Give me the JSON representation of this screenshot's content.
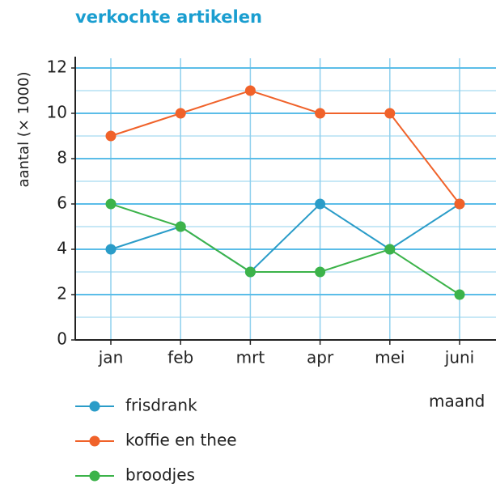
{
  "chart_data": {
    "type": "line",
    "title": "verkochte artikelen",
    "ylabel": "aantal (× 1000)",
    "xlabel": "maand",
    "categories": [
      "jan",
      "feb",
      "mrt",
      "apr",
      "mei",
      "juni"
    ],
    "series": [
      {
        "name": "frisdrank",
        "color": "#2a9cc8",
        "values": [
          4,
          5,
          3,
          6,
          4,
          6
        ]
      },
      {
        "name": "koffie en thee",
        "color": "#f0622a",
        "values": [
          9,
          10,
          11,
          10,
          10,
          6
        ]
      },
      {
        "name": "broodjes",
        "color": "#3cb34a",
        "values": [
          6,
          5,
          3,
          3,
          4,
          2
        ]
      }
    ],
    "ylim": [
      0,
      12
    ],
    "yticks": [
      0,
      2,
      4,
      6,
      8,
      10,
      12
    ],
    "minor_yticks": [
      1,
      3,
      5,
      7,
      9,
      11
    ],
    "grid": true
  }
}
